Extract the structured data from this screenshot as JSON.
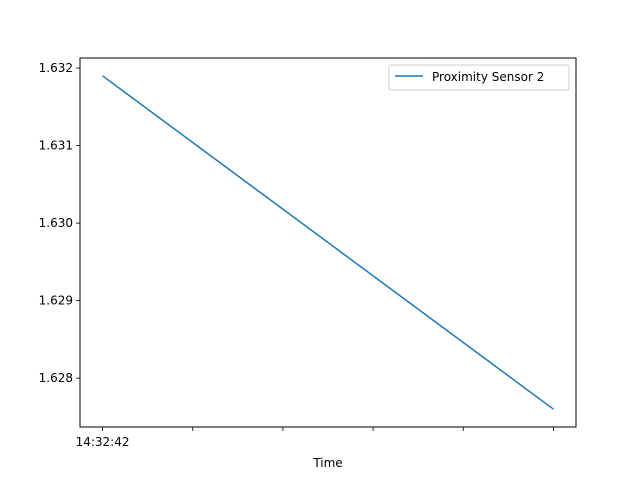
{
  "chart_data": {
    "type": "line",
    "title": "",
    "xlabel": "Time",
    "ylabel": "",
    "x_tick_labels": [
      "14:32:42",
      "",
      "",
      "",
      "",
      ""
    ],
    "x_ticks": [
      0,
      1,
      2,
      3,
      4,
      5
    ],
    "xlim": [
      -0.25,
      5.25
    ],
    "ylim": [
      1.62737,
      1.63213
    ],
    "y_ticks": [
      1.628,
      1.629,
      1.63,
      1.631,
      1.632
    ],
    "y_tick_labels": [
      "1.628",
      "1.629",
      "1.630",
      "1.631",
      "1.632"
    ],
    "series": [
      {
        "name": "Proximity Sensor 2",
        "color": "#1f77b4",
        "x": [
          0,
          5
        ],
        "y": [
          1.6319,
          1.6276
        ]
      }
    ],
    "legend_position": "top-right",
    "grid": false
  }
}
